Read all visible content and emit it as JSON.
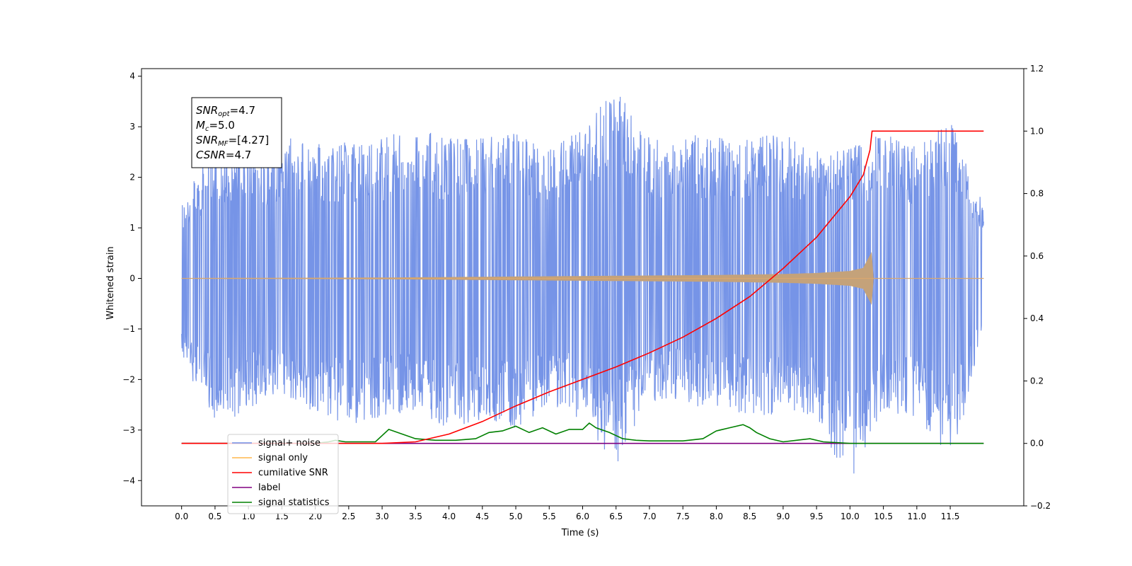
{
  "chart_data": {
    "type": "line",
    "xlabel": "Time (s)",
    "ylabel": "Whitened strain",
    "xlim": [
      -0.6,
      12.6
    ],
    "ylim": [
      -4.5,
      4.15
    ],
    "ylim_right": [
      -0.2,
      1.2
    ],
    "x_ticks": [
      0.0,
      0.5,
      1.0,
      1.5,
      2.0,
      2.5,
      3.0,
      3.5,
      4.0,
      4.5,
      5.0,
      5.5,
      6.0,
      6.5,
      7.0,
      7.5,
      8.0,
      8.5,
      9.0,
      9.5,
      10.0,
      10.5,
      11.0,
      11.5
    ],
    "x_tick_labels": [
      "0.0",
      "0.5",
      "1.0",
      "1.5",
      "2.0",
      "2.5",
      "3.0",
      "3.5",
      "4.0",
      "4.5",
      "5.0",
      "5.5",
      "6.0",
      "6.5",
      "7.0",
      "7.5",
      "8.0",
      "8.5",
      "9.0",
      "9.5",
      "10.0",
      "10.5",
      "11.0",
      "11.5"
    ],
    "y_ticks": [
      -4,
      -3,
      -2,
      -1,
      0,
      1,
      2,
      3,
      4
    ],
    "y_tick_labels": [
      "−4",
      "−3",
      "−2",
      "−1",
      "0",
      "1",
      "2",
      "3",
      "4"
    ],
    "y_right_ticks": [
      -0.2,
      0.0,
      0.2,
      0.4,
      0.6,
      0.8,
      1.0,
      1.2
    ],
    "y_right_tick_labels": [
      "−0.2",
      "0.0",
      "0.2",
      "0.4",
      "0.6",
      "0.8",
      "1.0",
      "1.2"
    ],
    "grid": false,
    "legend_position": "lower-left",
    "annotation": {
      "lines": [
        {
          "main": "SNR",
          "sub": "opt",
          "rest": "=4.7"
        },
        {
          "main": "M",
          "sub": "c",
          "rest": "=5.0"
        },
        {
          "main": "SNR",
          "sub": "MF",
          "rest": "=[4.27]"
        },
        {
          "main": "CSNR",
          "sub": "",
          "rest": "=4.7"
        }
      ]
    },
    "series": [
      {
        "name": "signal+ noise",
        "color": "#6f8ee6",
        "axis": "left",
        "x_range": [
          0.0,
          12.0
        ],
        "envelope": {
          "x": [
            0,
            0.5,
            1,
            1.5,
            2,
            2.5,
            3,
            3.5,
            4,
            4.5,
            5,
            5.5,
            6,
            6.5,
            7,
            7.5,
            8,
            8.5,
            9,
            9.5,
            10,
            10.5,
            11,
            11.5,
            12
          ],
          "upper": [
            1.5,
            2.8,
            2.4,
            2.8,
            2.7,
            2.7,
            2.8,
            3.0,
            2.8,
            2.8,
            2.9,
            2.6,
            3.0,
            3.75,
            2.8,
            2.9,
            2.8,
            2.8,
            2.9,
            2.6,
            2.6,
            2.9,
            2.6,
            3.2,
            1.5
          ],
          "lower": [
            -1.6,
            -2.9,
            -2.7,
            -2.3,
            -2.7,
            -2.9,
            -2.8,
            -2.6,
            -3.0,
            -2.8,
            -3.0,
            -2.5,
            -2.8,
            -3.7,
            -2.4,
            -2.5,
            -2.6,
            -2.8,
            -2.7,
            -2.8,
            -4.1,
            -2.6,
            -2.8,
            -3.6,
            -1.4
          ]
        }
      },
      {
        "name": "signal only",
        "color": "#ffb74d",
        "axis": "left",
        "x": [
          0,
          3,
          4,
          5,
          6,
          7,
          8,
          9,
          9.5,
          10,
          10.2,
          10.32,
          10.33,
          12.0
        ],
        "amplitude": [
          0,
          0.01,
          0.02,
          0.03,
          0.04,
          0.05,
          0.06,
          0.08,
          0.1,
          0.14,
          0.2,
          0.5,
          0,
          0
        ]
      },
      {
        "name": "cumilative SNR",
        "color": "#ff0000",
        "axis": "right",
        "x": [
          0.0,
          2.0,
          2.5,
          3.0,
          3.5,
          4.0,
          4.5,
          5.0,
          5.5,
          6.0,
          6.5,
          7.0,
          7.5,
          8.0,
          8.5,
          9.0,
          9.5,
          10.0,
          10.2,
          10.3,
          10.33,
          12.0
        ],
        "y": [
          0.0,
          0.0,
          0.0,
          0.0,
          0.005,
          0.03,
          0.07,
          0.12,
          0.165,
          0.205,
          0.245,
          0.29,
          0.34,
          0.4,
          0.47,
          0.56,
          0.66,
          0.79,
          0.86,
          0.94,
          1.0,
          1.0
        ]
      },
      {
        "name": "label",
        "color": "#800080",
        "axis": "right",
        "x": [
          0.0,
          12.0
        ],
        "y": [
          0.0,
          0.0
        ]
      },
      {
        "name": "signal statistics",
        "color": "#008000",
        "axis": "right",
        "x": [
          0.0,
          2.0,
          2.2,
          2.3,
          2.45,
          2.6,
          2.9,
          3.1,
          3.3,
          3.5,
          3.8,
          4.1,
          4.4,
          4.6,
          4.8,
          5.0,
          5.2,
          5.4,
          5.6,
          5.8,
          6.0,
          6.1,
          6.2,
          6.4,
          6.6,
          6.8,
          7.0,
          7.2,
          7.5,
          7.8,
          8.0,
          8.2,
          8.4,
          8.5,
          8.6,
          8.8,
          9.0,
          9.2,
          9.4,
          9.6,
          10.0,
          12.0
        ],
        "y": [
          0.0,
          0.0,
          0.005,
          0.01,
          0.005,
          0.005,
          0.005,
          0.045,
          0.03,
          0.015,
          0.01,
          0.01,
          0.015,
          0.035,
          0.04,
          0.055,
          0.035,
          0.05,
          0.03,
          0.045,
          0.045,
          0.065,
          0.05,
          0.035,
          0.015,
          0.01,
          0.008,
          0.008,
          0.008,
          0.015,
          0.04,
          0.05,
          0.06,
          0.05,
          0.035,
          0.015,
          0.005,
          0.01,
          0.015,
          0.005,
          0.0,
          0.0
        ]
      }
    ],
    "legend": [
      {
        "label": "signal+ noise",
        "color": "#6f8ee6"
      },
      {
        "label": "signal only",
        "color": "#ffb74d"
      },
      {
        "label": "cumilative SNR",
        "color": "#ff0000"
      },
      {
        "label": "label",
        "color": "#800080"
      },
      {
        "label": "signal statistics",
        "color": "#008000"
      }
    ]
  }
}
